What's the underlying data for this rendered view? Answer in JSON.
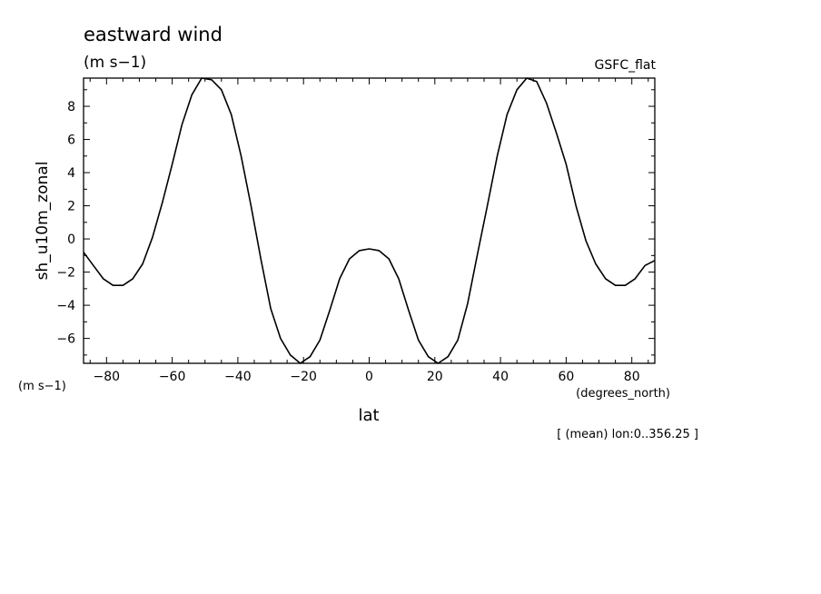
{
  "header": {
    "title": "eastward wind",
    "units": "(m s−1)",
    "source": "GSFC_flat"
  },
  "footer": {
    "note": "[ (mean) lon:0..356.25 ]"
  },
  "chart_data": {
    "type": "line",
    "title": "eastward wind",
    "xlabel": "lat",
    "x_units": "(degrees_north)",
    "ylabel": "sh_u10m_zonal",
    "y_units": "(m s−1)",
    "xlim": [
      -87,
      87
    ],
    "ylim": [
      -7.5,
      9.7
    ],
    "x_ticks": [
      -80,
      -60,
      -40,
      -20,
      0,
      20,
      40,
      60,
      80
    ],
    "x_tick_labels": [
      "−80",
      "−60",
      "−40",
      "−20",
      "0",
      "20",
      "40",
      "60",
      "80"
    ],
    "y_ticks": [
      -6,
      -4,
      -2,
      0,
      2,
      4,
      6,
      8
    ],
    "y_tick_labels": [
      "−6",
      "−4",
      "−2",
      "0",
      "2",
      "4",
      "6",
      "8"
    ],
    "grid": false,
    "series": [
      {
        "x": [
          -87,
          -84,
          -81,
          -78,
          -75,
          -72,
          -69,
          -66,
          -63,
          -60,
          -57,
          -54,
          -51,
          -48,
          -45,
          -42,
          -39,
          -36,
          -33,
          -30,
          -27,
          -24,
          -21,
          -18,
          -15,
          -12,
          -9,
          -6,
          -3,
          0,
          3,
          6,
          9,
          12,
          15,
          18,
          21,
          24,
          27,
          30,
          33,
          36,
          39,
          42,
          45,
          48,
          51,
          54,
          57,
          60,
          63,
          66,
          69,
          72,
          75,
          78,
          81,
          84,
          87
        ],
        "y": [
          -0.8,
          -1.6,
          -2.4,
          -2.8,
          -2.8,
          -2.4,
          -1.5,
          0.1,
          2.2,
          4.5,
          6.9,
          8.7,
          9.7,
          9.6,
          9.0,
          7.5,
          5.0,
          2.0,
          -1.2,
          -4.2,
          -6.0,
          -7.0,
          -7.5,
          -7.1,
          -6.1,
          -4.3,
          -2.4,
          -1.2,
          -0.7,
          -0.6,
          -0.7,
          -1.2,
          -2.4,
          -4.3,
          -6.1,
          -7.1,
          -7.5,
          -7.1,
          -6.1,
          -3.9,
          -0.9,
          2.0,
          5.0,
          7.5,
          9.0,
          9.7,
          9.5,
          8.2,
          6.4,
          4.5,
          2.0,
          -0.1,
          -1.5,
          -2.4,
          -2.8,
          -2.8,
          -2.4,
          -1.6,
          -1.3
        ]
      }
    ]
  }
}
